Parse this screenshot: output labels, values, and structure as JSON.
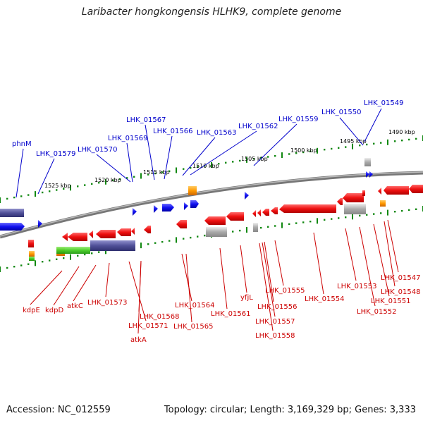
{
  "title": "Laribacter hongkongensis HLHK9, complete genome",
  "footer": {
    "accession": "Accession: NC_012559",
    "stats": "Topology: circular; Length: 3,169,329 bp; Genes: 3,333"
  },
  "scale_labels": [
    "1525 kbp",
    "1520 kbp",
    "1515 kbp",
    "1510 kbp",
    "1505 kbp",
    "1500 kbp",
    "1495 kbp",
    "1490 kbp"
  ],
  "top_labels": [
    "phnM",
    "LHK_01579",
    "LHK_01570",
    "LHK_01569",
    "LHK_01567",
    "LHK_01566",
    "LHK_01563",
    "LHK_01562",
    "LHK_01559",
    "LHK_01550",
    "LHK_01549"
  ],
  "bottom_labels": [
    "kdpE",
    "kdpD",
    "atkC",
    "LHK_01573",
    "LHK_01568",
    "LHK_01571",
    "atkA",
    "LHK_01564",
    "LHK_01565",
    "LHK_01561",
    "yfjL",
    "LHK_01555",
    "LHK_01556",
    "LHK_01557",
    "LHK_01558",
    "LHK_01554",
    "LHK_01553",
    "LHK_01552",
    "LHK_01551",
    "LHK_01548",
    "LHK_01547"
  ],
  "colors": {
    "top_label": "#0000cc",
    "bottom_label": "#cc0000",
    "forward_gene": "#1010ee",
    "reverse_gene": "#ee1010",
    "backbone": "#777777",
    "tick": "#118811"
  }
}
